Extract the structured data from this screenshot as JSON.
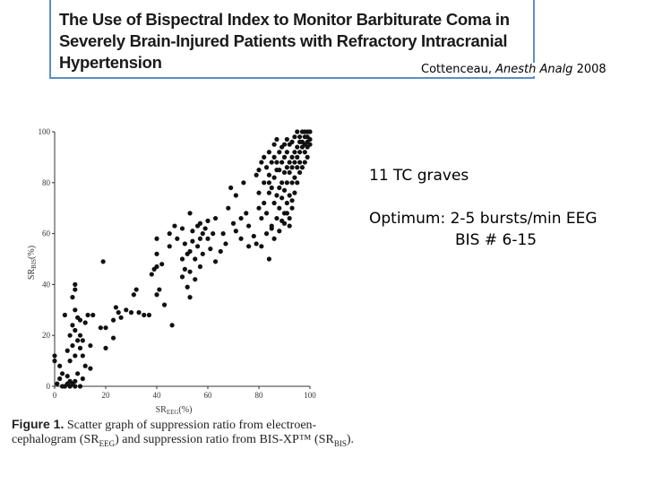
{
  "slide": {
    "article_title": "The Use of Bispectral Index to Monitor Barbiturate Coma in Severely Brain-Injured Patients with Refractory Intracranial Hypertension",
    "citation_author": "Cottenceau,",
    "citation_journal": "Anesth Analg",
    "citation_year": "2008",
    "note_patients": "11 TC graves",
    "note_optimum_label": "Optimum:",
    "note_optimum_eeg": "2-5 bursts/min EEG",
    "note_optimum_bis": "BIS # 6-15"
  },
  "figure": {
    "label": "Figure 1.",
    "caption_part1": "Scatter graph of suppression ratio from electroen-cephalogram (SR",
    "caption_sub1": "EEG",
    "caption_part2": ") and suppression ratio from BIS-XP™ (SR",
    "caption_sub2": "BIS",
    "caption_part3": ")."
  },
  "chart_data": {
    "type": "scatter",
    "xlabel": "SR",
    "xlabel_sub": "EEG",
    "xlabel_unit": "(%)",
    "ylabel": "SR",
    "ylabel_sub": "BIS",
    "ylabel_unit": "(%)",
    "xlim": [
      0,
      100
    ],
    "ylim": [
      0,
      100
    ],
    "x_ticks": [
      0,
      20,
      40,
      60,
      80,
      100
    ],
    "y_ticks": [
      0,
      20,
      40,
      60,
      80,
      100
    ],
    "colors": {
      "points": "#111111",
      "axis": "#333333"
    },
    "points": [
      [
        0,
        12
      ],
      [
        0,
        10
      ],
      [
        1,
        1
      ],
      [
        2,
        3
      ],
      [
        2,
        8
      ],
      [
        3,
        5
      ],
      [
        3,
        0
      ],
      [
        4,
        0
      ],
      [
        4,
        28
      ],
      [
        5,
        1
      ],
      [
        5,
        4
      ],
      [
        5,
        14
      ],
      [
        6,
        0
      ],
      [
        6,
        2
      ],
      [
        6,
        10
      ],
      [
        6,
        20
      ],
      [
        7,
        1
      ],
      [
        7,
        16
      ],
      [
        7,
        24
      ],
      [
        7,
        35
      ],
      [
        8,
        0
      ],
      [
        8,
        2
      ],
      [
        8,
        12
      ],
      [
        8,
        22
      ],
      [
        8,
        30
      ],
      [
        8,
        38
      ],
      [
        8,
        40
      ],
      [
        9,
        5
      ],
      [
        9,
        18
      ],
      [
        9,
        27
      ],
      [
        10,
        0
      ],
      [
        10,
        15
      ],
      [
        10,
        20
      ],
      [
        10,
        26
      ],
      [
        11,
        3
      ],
      [
        11,
        12
      ],
      [
        11,
        18
      ],
      [
        12,
        8
      ],
      [
        12,
        25
      ],
      [
        13,
        28
      ],
      [
        14,
        7
      ],
      [
        14,
        16
      ],
      [
        15,
        28
      ],
      [
        18,
        23
      ],
      [
        19,
        49
      ],
      [
        20,
        15
      ],
      [
        20,
        23
      ],
      [
        23,
        19
      ],
      [
        23,
        26
      ],
      [
        24,
        31
      ],
      [
        25,
        29
      ],
      [
        26,
        27
      ],
      [
        28,
        30
      ],
      [
        30,
        29
      ],
      [
        31,
        36
      ],
      [
        32,
        38
      ],
      [
        33,
        29
      ],
      [
        35,
        28
      ],
      [
        37,
        28
      ],
      [
        38,
        44
      ],
      [
        39,
        46
      ],
      [
        40,
        36
      ],
      [
        40,
        47
      ],
      [
        40,
        52
      ],
      [
        40,
        58
      ],
      [
        41,
        38
      ],
      [
        42,
        48
      ],
      [
        43,
        32
      ],
      [
        45,
        55
      ],
      [
        45,
        60
      ],
      [
        46,
        24
      ],
      [
        47,
        63
      ],
      [
        48,
        58
      ],
      [
        50,
        43
      ],
      [
        50,
        50
      ],
      [
        50,
        62
      ],
      [
        51,
        46
      ],
      [
        51,
        56
      ],
      [
        52,
        39
      ],
      [
        52,
        52
      ],
      [
        53,
        35
      ],
      [
        53,
        45
      ],
      [
        53,
        53
      ],
      [
        53,
        68
      ],
      [
        54,
        57
      ],
      [
        54,
        61
      ],
      [
        55,
        42
      ],
      [
        55,
        50
      ],
      [
        56,
        55
      ],
      [
        56,
        63
      ],
      [
        57,
        47
      ],
      [
        57,
        58
      ],
      [
        57,
        64
      ],
      [
        58,
        52
      ],
      [
        58,
        60
      ],
      [
        59,
        62
      ],
      [
        60,
        58
      ],
      [
        60,
        65
      ],
      [
        61,
        54
      ],
      [
        62,
        60
      ],
      [
        63,
        49
      ],
      [
        63,
        66
      ],
      [
        65,
        53
      ],
      [
        66,
        60
      ],
      [
        67,
        56
      ],
      [
        68,
        70
      ],
      [
        69,
        78
      ],
      [
        70,
        64
      ],
      [
        71,
        75
      ],
      [
        71,
        61
      ],
      [
        73,
        58
      ],
      [
        73,
        66
      ],
      [
        74,
        80
      ],
      [
        75,
        68
      ],
      [
        76,
        55
      ],
      [
        76,
        63
      ],
      [
        78,
        59
      ],
      [
        79,
        56
      ],
      [
        79,
        83
      ],
      [
        80,
        85
      ],
      [
        80,
        70
      ],
      [
        80,
        76
      ],
      [
        81,
        88
      ],
      [
        81,
        66
      ],
      [
        81,
        55
      ],
      [
        82,
        72
      ],
      [
        82,
        90
      ],
      [
        82,
        80
      ],
      [
        83,
        60
      ],
      [
        83,
        86
      ],
      [
        83,
        68
      ],
      [
        84,
        76
      ],
      [
        84,
        92
      ],
      [
        84,
        83
      ],
      [
        84,
        50
      ],
      [
        85,
        63
      ],
      [
        85,
        88
      ],
      [
        85,
        78
      ],
      [
        86,
        72
      ],
      [
        86,
        95
      ],
      [
        86,
        82
      ],
      [
        86,
        90
      ],
      [
        87,
        85
      ],
      [
        87,
        66
      ],
      [
        87,
        97
      ],
      [
        87,
        88
      ],
      [
        88,
        78
      ],
      [
        88,
        92
      ],
      [
        88,
        70
      ],
      [
        88,
        85
      ],
      [
        89,
        80
      ],
      [
        89,
        94
      ],
      [
        89,
        88
      ],
      [
        89,
        65
      ],
      [
        90,
        84
      ],
      [
        90,
        95
      ],
      [
        90,
        77
      ],
      [
        90,
        90
      ],
      [
        90,
        68
      ],
      [
        91,
        86
      ],
      [
        91,
        72
      ],
      [
        91,
        97
      ],
      [
        91,
        80
      ],
      [
        91,
        92
      ],
      [
        92,
        88
      ],
      [
        92,
        75
      ],
      [
        92,
        95
      ],
      [
        92,
        84
      ],
      [
        92,
        63
      ],
      [
        93,
        90
      ],
      [
        93,
        80
      ],
      [
        93,
        96
      ],
      [
        93,
        86
      ],
      [
        93,
        70
      ],
      [
        94,
        92
      ],
      [
        94,
        82
      ],
      [
        94,
        98
      ],
      [
        94,
        88
      ],
      [
        94,
        76
      ],
      [
        95,
        94
      ],
      [
        95,
        86
      ],
      [
        95,
        100
      ],
      [
        95,
        90
      ],
      [
        95,
        80
      ],
      [
        96,
        96
      ],
      [
        96,
        88
      ],
      [
        96,
        98
      ],
      [
        96,
        92
      ],
      [
        96,
        84
      ],
      [
        97,
        100
      ],
      [
        97,
        94
      ],
      [
        97,
        86
      ],
      [
        97,
        96
      ],
      [
        98,
        98
      ],
      [
        98,
        92
      ],
      [
        98,
        88
      ],
      [
        98,
        100
      ],
      [
        98,
        95
      ],
      [
        99,
        96
      ],
      [
        99,
        100
      ],
      [
        99,
        90
      ],
      [
        99,
        98
      ],
      [
        99,
        94
      ],
      [
        100,
        100
      ],
      [
        100,
        97
      ],
      [
        100,
        95
      ],
      [
        92,
        66
      ],
      [
        91,
        68
      ],
      [
        93,
        73
      ],
      [
        89,
        74
      ],
      [
        87,
        75
      ],
      [
        86,
        58
      ],
      [
        85,
        62
      ],
      [
        84,
        80
      ],
      [
        88,
        61
      ],
      [
        90,
        64
      ]
    ]
  }
}
